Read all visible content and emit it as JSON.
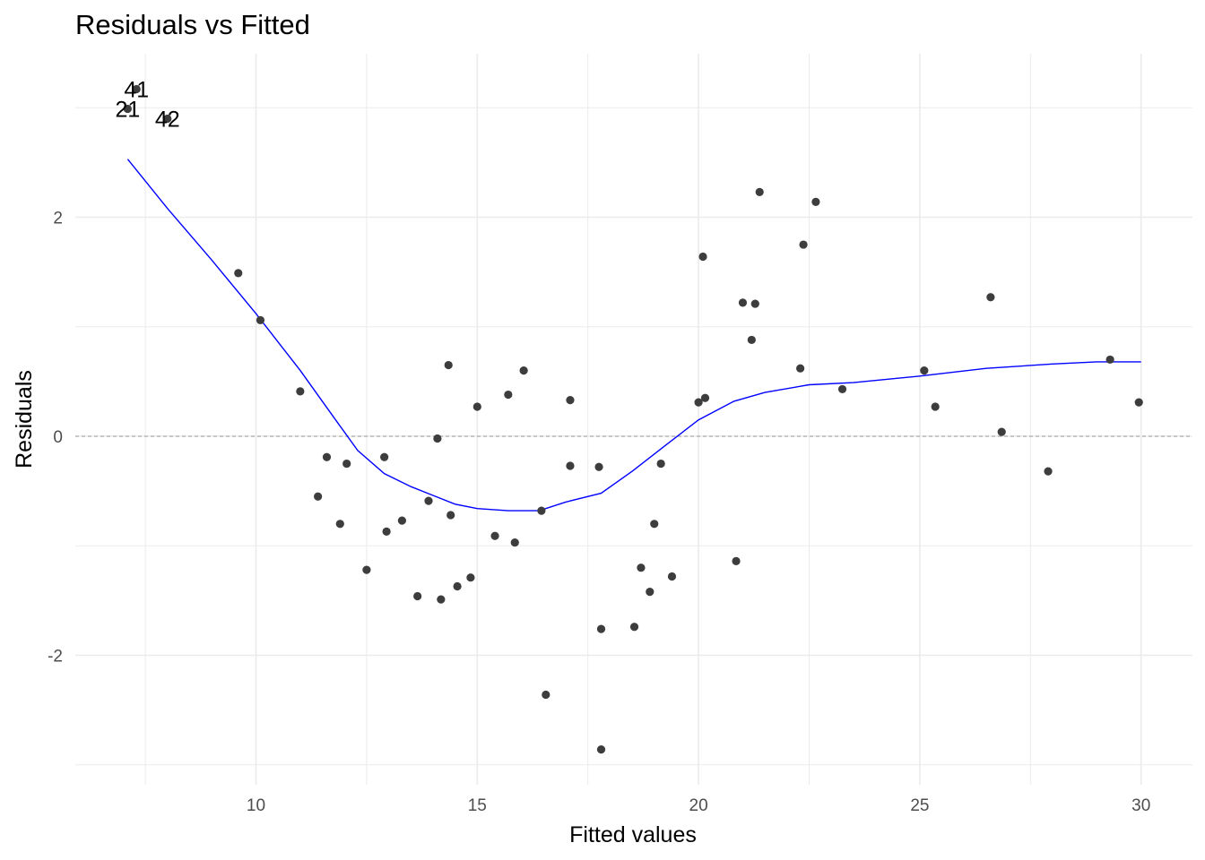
{
  "chart_data": {
    "type": "scatter",
    "title": "Residuals vs Fitted",
    "xlabel": "Fitted values",
    "ylabel": "Residuals",
    "xlim": [
      6.2,
      31.1
    ],
    "ylim": [
      -3.1,
      3.5
    ],
    "x_ticks": [
      10,
      15,
      20,
      25,
      30
    ],
    "y_ticks": [
      -2,
      0,
      2
    ],
    "grid": true,
    "reference_line": {
      "y": 0,
      "style": "dashed"
    },
    "colors": {
      "points": "#3d3d3d",
      "smooth": "#0000ff",
      "grid": "#ebebeb",
      "refline": "#999999"
    },
    "points": [
      {
        "x": 7.3,
        "y": 3.17,
        "label": "41"
      },
      {
        "x": 7.1,
        "y": 2.99,
        "label": "21"
      },
      {
        "x": 8.0,
        "y": 2.9,
        "label": "42"
      },
      {
        "x": 9.6,
        "y": 1.49
      },
      {
        "x": 10.1,
        "y": 1.06
      },
      {
        "x": 11.0,
        "y": 0.41
      },
      {
        "x": 11.4,
        "y": -0.55
      },
      {
        "x": 11.6,
        "y": -0.19
      },
      {
        "x": 11.9,
        "y": -0.8
      },
      {
        "x": 12.05,
        "y": -0.25
      },
      {
        "x": 12.5,
        "y": -1.22
      },
      {
        "x": 12.9,
        "y": -0.19
      },
      {
        "x": 12.95,
        "y": -0.87
      },
      {
        "x": 13.3,
        "y": -0.77
      },
      {
        "x": 13.65,
        "y": -1.46
      },
      {
        "x": 13.9,
        "y": -0.59
      },
      {
        "x": 14.1,
        "y": -0.02
      },
      {
        "x": 14.18,
        "y": -1.49
      },
      {
        "x": 14.35,
        "y": 0.65
      },
      {
        "x": 14.4,
        "y": -0.72
      },
      {
        "x": 14.55,
        "y": -1.37
      },
      {
        "x": 14.85,
        "y": -1.29
      },
      {
        "x": 15.0,
        "y": 0.27
      },
      {
        "x": 15.4,
        "y": -0.91
      },
      {
        "x": 15.7,
        "y": 0.38
      },
      {
        "x": 15.85,
        "y": -0.97
      },
      {
        "x": 16.05,
        "y": 0.6
      },
      {
        "x": 16.45,
        "y": -0.68
      },
      {
        "x": 16.55,
        "y": -2.36
      },
      {
        "x": 17.1,
        "y": 0.33
      },
      {
        "x": 17.1,
        "y": -0.27
      },
      {
        "x": 17.75,
        "y": -0.28
      },
      {
        "x": 17.8,
        "y": -1.76
      },
      {
        "x": 17.8,
        "y": -2.86
      },
      {
        "x": 18.55,
        "y": -1.74
      },
      {
        "x": 18.7,
        "y": -1.2
      },
      {
        "x": 18.9,
        "y": -1.42
      },
      {
        "x": 19.0,
        "y": -0.8
      },
      {
        "x": 19.15,
        "y": -0.25
      },
      {
        "x": 19.4,
        "y": -1.28
      },
      {
        "x": 20.0,
        "y": 0.31
      },
      {
        "x": 20.1,
        "y": 1.64
      },
      {
        "x": 20.15,
        "y": 0.35
      },
      {
        "x": 20.85,
        "y": -1.14
      },
      {
        "x": 21.0,
        "y": 1.22
      },
      {
        "x": 21.2,
        "y": 0.88
      },
      {
        "x": 21.28,
        "y": 1.21
      },
      {
        "x": 21.38,
        "y": 2.23
      },
      {
        "x": 22.3,
        "y": 0.62
      },
      {
        "x": 22.37,
        "y": 1.75
      },
      {
        "x": 22.65,
        "y": 2.14
      },
      {
        "x": 23.25,
        "y": 0.43
      },
      {
        "x": 25.1,
        "y": 0.6
      },
      {
        "x": 25.35,
        "y": 0.27
      },
      {
        "x": 26.6,
        "y": 1.27
      },
      {
        "x": 26.85,
        "y": 0.04
      },
      {
        "x": 27.9,
        "y": -0.32
      },
      {
        "x": 29.3,
        "y": 0.7
      },
      {
        "x": 29.95,
        "y": 0.31
      }
    ],
    "smooth_line": {
      "x": [
        7.1,
        8.0,
        9.0,
        10.0,
        11.0,
        11.8,
        12.3,
        12.9,
        13.5,
        14.0,
        14.5,
        15.0,
        15.7,
        16.4,
        17.0,
        17.8,
        18.5,
        19.2,
        20.0,
        20.8,
        21.5,
        22.5,
        23.5,
        25.0,
        26.5,
        28.0,
        29.0,
        30.0
      ],
      "y": [
        2.53,
        2.08,
        1.61,
        1.12,
        0.6,
        0.15,
        -0.13,
        -0.34,
        -0.46,
        -0.54,
        -0.62,
        -0.66,
        -0.68,
        -0.68,
        -0.6,
        -0.52,
        -0.32,
        -0.1,
        0.15,
        0.32,
        0.4,
        0.47,
        0.49,
        0.55,
        0.62,
        0.66,
        0.68,
        0.68
      ]
    }
  }
}
